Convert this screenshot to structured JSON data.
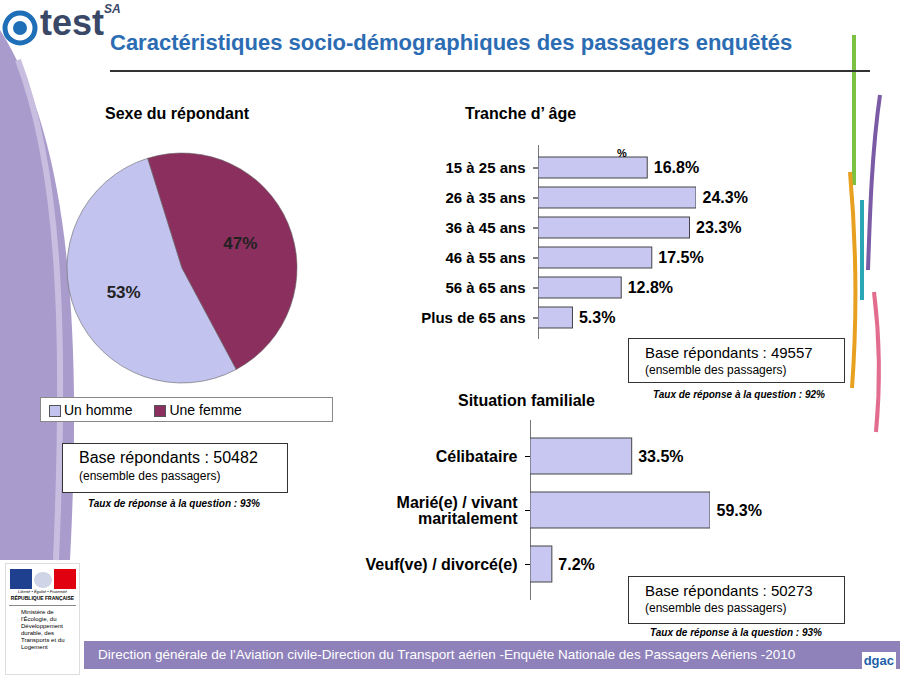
{
  "header": {
    "logo": "test",
    "logo_sup": "SA",
    "title": "Caractéristiques socio-démographiques des passagers enquêtés"
  },
  "footer": "Direction générale de l'Aviation civile-Direction du Transport aérien -Enquête Nationale des Passagers Aériens -2010",
  "ministry_logo": [
    "Liberté • Égalité • Fraternité",
    "RÉPUBLIQUE FRANÇAISE",
    "Ministère de l'Écologie, du Développement durable, des Transports et du Logement"
  ],
  "dgac_logo": "dgac",
  "chart_data": [
    {
      "type": "pie",
      "title": "Sexe du répondant",
      "categories": [
        "Un homme",
        "Une femme"
      ],
      "values": [
        53,
        47
      ],
      "value_labels": [
        "53%",
        "47%"
      ],
      "colors": [
        "#c3c3f0",
        "#8b2f5e"
      ],
      "data_labels": true,
      "legend": "bottom",
      "annotations": [
        "Base répondants : 50482",
        "(ensemble des passagers)",
        "Taux de réponse à la question : 93%"
      ]
    },
    {
      "type": "bar",
      "title": "Tranche d’ âge",
      "orientation": "horizontal",
      "categories": [
        "15 à 25 ans",
        "26 à 35 ans",
        "36 à 45 ans",
        "46 à 55 ans",
        "56 à 65 ans",
        "Plus de 65 ans"
      ],
      "values": [
        16.8,
        24.3,
        23.3,
        17.5,
        12.8,
        5.3
      ],
      "value_labels": [
        "16.8%",
        "24.3%",
        "23.3%",
        "17.5%",
        "12.8%",
        "5.3%"
      ],
      "color": "#c7c7f2",
      "data_labels": true,
      "tick_labels": "y",
      "annotations": [
        "Base répondants : 49557",
        "(ensemble des passagers)",
        "Taux de réponse à la question : 92%",
        "%"
      ]
    },
    {
      "type": "bar",
      "title": "Situation familiale",
      "orientation": "horizontal",
      "categories": [
        "Célibataire",
        "Marié(e) / vivant maritalement",
        "Veuf(ve) / divorcé(e)"
      ],
      "values": [
        33.5,
        59.3,
        7.2
      ],
      "value_labels": [
        "33.5%",
        "59.3%",
        "7.2%"
      ],
      "color": "#c7c7f2",
      "data_labels": true,
      "tick_labels": "y",
      "annotations": [
        "Base répondants : 50273",
        "(ensemble des passagers)",
        "Taux de réponse à la question : 93%"
      ]
    }
  ]
}
